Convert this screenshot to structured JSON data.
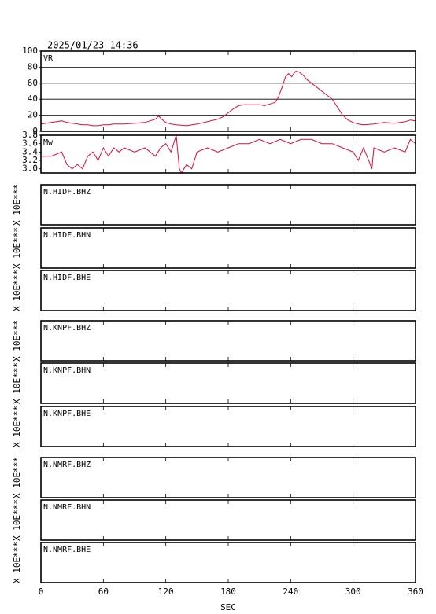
{
  "timestamp": "2025/01/23 14:36",
  "chart_data": [
    {
      "type": "line",
      "label": "VR",
      "color": "#d0103a",
      "x": [
        0,
        5,
        10,
        15,
        20,
        25,
        30,
        35,
        40,
        45,
        50,
        55,
        60,
        65,
        70,
        80,
        90,
        100,
        105,
        110,
        113,
        117,
        120,
        125,
        130,
        140,
        150,
        160,
        170,
        175,
        180,
        185,
        190,
        195,
        200,
        210,
        215,
        220,
        225,
        228,
        232,
        235,
        238,
        241,
        243,
        245,
        248,
        252,
        256,
        260,
        265,
        270,
        275,
        280,
        285,
        290,
        295,
        300,
        305,
        310,
        320,
        330,
        340,
        350,
        355,
        360
      ],
      "values": [
        9,
        10,
        11,
        12,
        13,
        11,
        10,
        9,
        8,
        8,
        7,
        7,
        8,
        8,
        9,
        9,
        10,
        11,
        13,
        15,
        19,
        14,
        11,
        9,
        8,
        7,
        9,
        12,
        15,
        18,
        23,
        28,
        32,
        33,
        33,
        33,
        32,
        34,
        36,
        42,
        56,
        68,
        72,
        68,
        72,
        75,
        74,
        70,
        64,
        60,
        55,
        50,
        45,
        40,
        30,
        20,
        14,
        11,
        9,
        8,
        9,
        11,
        10,
        12,
        14,
        13
      ],
      "xlim": [
        0,
        360
      ],
      "ylim": [
        0,
        100
      ],
      "yticks": [
        0,
        20,
        40,
        60,
        80,
        100
      ],
      "grid": true
    },
    {
      "type": "line",
      "label": "Mw",
      "color": "#d0103a",
      "x": [
        0,
        10,
        20,
        25,
        30,
        35,
        40,
        45,
        50,
        55,
        60,
        65,
        70,
        75,
        80,
        90,
        100,
        110,
        115,
        120,
        125,
        130,
        133,
        135,
        140,
        145,
        150,
        160,
        170,
        180,
        190,
        200,
        210,
        220,
        230,
        240,
        250,
        260,
        270,
        280,
        290,
        300,
        305,
        310,
        315,
        318,
        320,
        330,
        340,
        350,
        355,
        360
      ],
      "values": [
        3.3,
        3.3,
        3.4,
        3.1,
        3.0,
        3.1,
        3.0,
        3.3,
        3.4,
        3.2,
        3.5,
        3.3,
        3.5,
        3.4,
        3.5,
        3.4,
        3.5,
        3.3,
        3.5,
        3.6,
        3.4,
        3.8,
        3.0,
        2.9,
        3.1,
        3.0,
        3.4,
        3.5,
        3.4,
        3.5,
        3.6,
        3.6,
        3.7,
        3.6,
        3.7,
        3.6,
        3.7,
        3.7,
        3.6,
        3.6,
        3.5,
        3.4,
        3.2,
        3.5,
        3.2,
        3.0,
        3.5,
        3.4,
        3.5,
        3.4,
        3.7,
        3.6
      ],
      "xlim": [
        0,
        360
      ],
      "ylim": [
        2.9,
        3.8
      ],
      "yticks": [
        {
          "value": 3,
          "label": "3.0"
        },
        3.2,
        3.4,
        3.6,
        3.8
      ]
    },
    {
      "type": "waveform",
      "y_label": "X 10E***",
      "xlim": [
        0,
        360
      ],
      "xticks": [
        0,
        60,
        120,
        180,
        240,
        300,
        360
      ],
      "xlabel": "SEC",
      "panels": [
        "N.HIDF.BHZ",
        "N.HIDF.BHN",
        "N.HIDF.BHE",
        "N.KNPF.BHZ",
        "N.KNPF.BHN",
        "N.KNPF.BHE",
        "N.NMRF.BHZ",
        "N.NMRF.BHN",
        "N.NMRF.BHE"
      ]
    }
  ]
}
